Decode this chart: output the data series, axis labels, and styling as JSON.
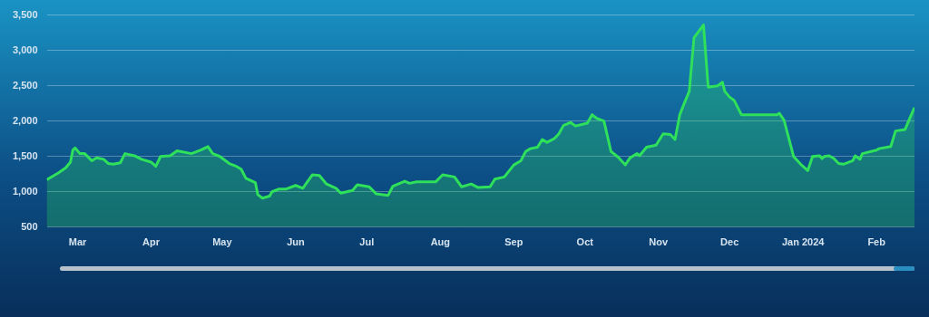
{
  "chart_data": {
    "type": "area",
    "color": "#2ee05a",
    "x": [
      "2023-02-16",
      "2023-02-21",
      "2023-02-24",
      "2023-02-26",
      "2023-02-27",
      "2023-02-28",
      "2023-03-02",
      "2023-03-04",
      "2023-03-07",
      "2023-03-09",
      "2023-03-12",
      "2023-03-14",
      "2023-03-16",
      "2023-03-19",
      "2023-03-21",
      "2023-03-25",
      "2023-03-28",
      "2023-04-01",
      "2023-04-03",
      "2023-04-05",
      "2023-04-09",
      "2023-04-12",
      "2023-04-18",
      "2023-04-22",
      "2023-04-25",
      "2023-04-27",
      "2023-04-30",
      "2023-05-04",
      "2023-05-07",
      "2023-05-09",
      "2023-05-11",
      "2023-05-15",
      "2023-05-16",
      "2023-05-18",
      "2023-05-21",
      "2023-05-22",
      "2023-05-25",
      "2023-05-28",
      "2023-06-01",
      "2023-06-04",
      "2023-06-08",
      "2023-06-11",
      "2023-06-14",
      "2023-06-18",
      "2023-06-20",
      "2023-06-25",
      "2023-06-27",
      "2023-07-02",
      "2023-07-05",
      "2023-07-10",
      "2023-07-12",
      "2023-07-17",
      "2023-07-19",
      "2023-07-22",
      "2023-07-30",
      "2023-08-02",
      "2023-08-07",
      "2023-08-10",
      "2023-08-14",
      "2023-08-17",
      "2023-08-22",
      "2023-08-24",
      "2023-08-28",
      "2023-09-01",
      "2023-09-04",
      "2023-09-06",
      "2023-09-08",
      "2023-09-11",
      "2023-09-13",
      "2023-09-15",
      "2023-09-18",
      "2023-09-20",
      "2023-09-22",
      "2023-09-25",
      "2023-09-27",
      "2023-10-02",
      "2023-10-04",
      "2023-10-06",
      "2023-10-09",
      "2023-10-12",
      "2023-10-15",
      "2023-10-18",
      "2023-10-20",
      "2023-10-23",
      "2023-10-24",
      "2023-10-27",
      "2023-10-31",
      "2023-11-03",
      "2023-11-06",
      "2023-11-08",
      "2023-11-10",
      "2023-11-12",
      "2023-11-14",
      "2023-11-16",
      "2023-11-20",
      "2023-11-22",
      "2023-11-26",
      "2023-11-28",
      "2023-11-29",
      "2023-12-01",
      "2023-12-03",
      "2023-12-06",
      "2023-12-21",
      "2023-12-22",
      "2023-12-24",
      "2023-12-28",
      "2023-12-31",
      "2024-01-03",
      "2024-01-05",
      "2024-01-08",
      "2024-01-09",
      "2024-01-10",
      "2024-01-12",
      "2024-01-14",
      "2024-01-16",
      "2024-01-18",
      "2024-01-22",
      "2024-01-23",
      "2024-01-25",
      "2024-01-26",
      "2024-02-01",
      "2024-02-02",
      "2024-02-07",
      "2024-02-09",
      "2024-02-13",
      "2024-02-15",
      "2024-02-17"
    ],
    "values": [
      1170,
      1270,
      1340,
      1420,
      1590,
      1620,
      1540,
      1540,
      1440,
      1480,
      1460,
      1400,
      1390,
      1410,
      1540,
      1510,
      1460,
      1420,
      1360,
      1500,
      1510,
      1580,
      1540,
      1590,
      1640,
      1540,
      1500,
      1400,
      1360,
      1320,
      1190,
      1130,
      960,
      910,
      940,
      1000,
      1040,
      1040,
      1090,
      1050,
      1240,
      1230,
      1110,
      1050,
      980,
      1020,
      1100,
      1070,
      970,
      950,
      1080,
      1150,
      1120,
      1140,
      1140,
      1240,
      1210,
      1070,
      1110,
      1060,
      1070,
      1180,
      1210,
      1380,
      1440,
      1570,
      1610,
      1630,
      1740,
      1700,
      1750,
      1820,
      1940,
      1980,
      1930,
      1970,
      2090,
      2040,
      2000,
      1570,
      1490,
      1380,
      1480,
      1540,
      1510,
      1630,
      1660,
      1820,
      1810,
      1740,
      2090,
      2260,
      2420,
      3180,
      3360,
      2480,
      2500,
      2550,
      2420,
      2340,
      2290,
      2090,
      2090,
      2110,
      2010,
      1500,
      1390,
      1300,
      1500,
      1510,
      1470,
      1500,
      1510,
      1470,
      1400,
      1390,
      1440,
      1510,
      1460,
      1540,
      1590,
      1610,
      1640,
      1860,
      1880,
      2040,
      2190
    ],
    "xlim": [
      "2023-02-16",
      "2024-02-17"
    ],
    "xticks": [
      {
        "value": "2023-03-01",
        "label": "Mar"
      },
      {
        "value": "2023-04-01",
        "label": "Apr"
      },
      {
        "value": "2023-05-01",
        "label": "May"
      },
      {
        "value": "2023-06-01",
        "label": "Jun"
      },
      {
        "value": "2023-07-01",
        "label": "Jul"
      },
      {
        "value": "2023-08-01",
        "label": "Aug"
      },
      {
        "value": "2023-09-01",
        "label": "Sep"
      },
      {
        "value": "2023-10-01",
        "label": "Oct"
      },
      {
        "value": "2023-11-01",
        "label": "Nov"
      },
      {
        "value": "2023-12-01",
        "label": "Dec"
      },
      {
        "value": "2024-01-01",
        "label": "Jan 2024"
      },
      {
        "value": "2024-02-01",
        "label": "Feb"
      }
    ],
    "ylim": [
      500,
      3500
    ],
    "yticks": [
      500,
      {
        "value": 1000,
        "label": "1,000"
      },
      {
        "value": 1500,
        "label": "1,500"
      },
      {
        "value": 2000,
        "label": "2,000"
      },
      {
        "value": 2500,
        "label": "2,500"
      },
      {
        "value": 3000,
        "label": "3,000"
      },
      {
        "value": 3500,
        "label": "3,500"
      }
    ],
    "grid": "y"
  }
}
